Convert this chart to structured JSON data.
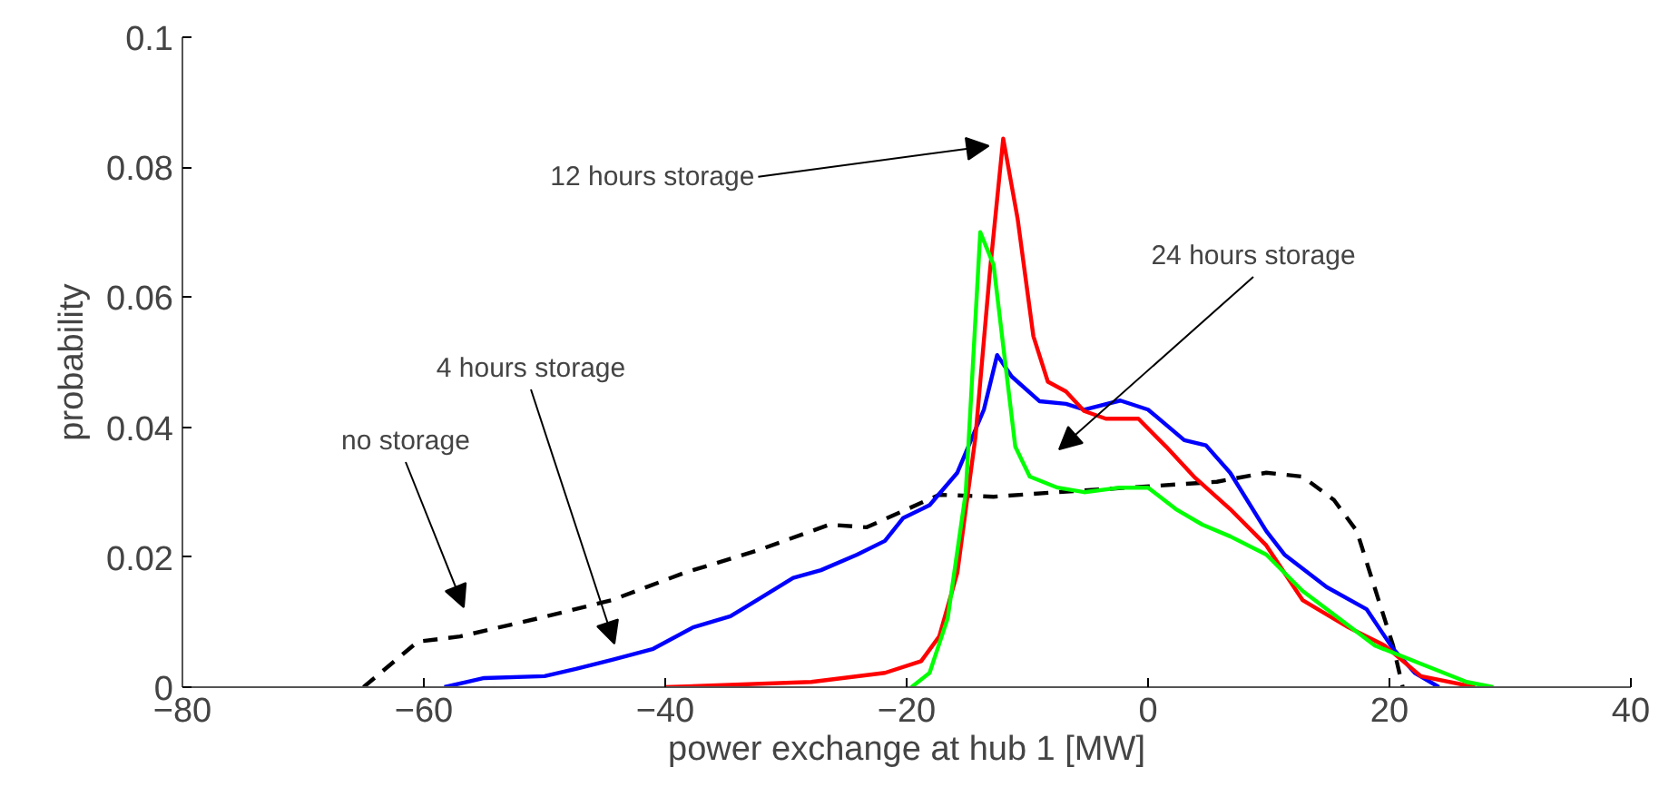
{
  "chart_data": {
    "type": "line",
    "xlabel": "power exchange at hub 1 [MW]",
    "ylabel": "probability",
    "xlim": [
      -80,
      40
    ],
    "xticks": [
      {
        "value": -80,
        "label": "−80"
      },
      {
        "value": -60,
        "label": "−60"
      },
      {
        "value": -40,
        "label": "−40"
      },
      {
        "value": -20,
        "label": "−20"
      },
      0,
      20,
      40
    ],
    "ylim": [
      0,
      0.1
    ],
    "yticks": [
      0,
      0.02,
      0.04,
      0.06,
      0.08,
      0.1
    ],
    "grid": false,
    "series": [
      {
        "color": "#000000",
        "line_style": "dashed",
        "x": [
          -65,
          -60.5,
          -57,
          -50.5,
          -44.4,
          -38.4,
          -32.4,
          -26.4,
          -23.3,
          -17.3,
          -12.8,
          -7.5,
          0.8,
          5.7,
          9.8,
          12.8,
          15.4,
          17.3,
          19.1,
          20.3,
          21.1
        ],
        "values": [
          0,
          0.007,
          0.0078,
          0.0106,
          0.0134,
          0.0176,
          0.021,
          0.025,
          0.0246,
          0.0296,
          0.0293,
          0.03,
          0.031,
          0.0316,
          0.033,
          0.0324,
          0.0288,
          0.024,
          0.0134,
          0.0064,
          0
        ]
      },
      {
        "color": "#0000ff",
        "line_style": "solid",
        "x": [
          -58.3,
          -55,
          -50,
          -47.4,
          -44.4,
          -41,
          -37.7,
          -34.6,
          -32.4,
          -29.4,
          -27.1,
          -24.1,
          -21.8,
          -20.3,
          -18.1,
          -15.8,
          -13.6,
          -12.5,
          -11.3,
          -9,
          -6.8,
          -5.3,
          -2.3,
          0,
          3,
          4.8,
          6.8,
          9.8,
          11.3,
          14.8,
          18.1,
          20.3,
          22.1,
          24.1
        ],
        "values": [
          0,
          0.0014,
          0.0017,
          0.0028,
          0.0042,
          0.0059,
          0.0092,
          0.0109,
          0.0134,
          0.0168,
          0.018,
          0.0204,
          0.0225,
          0.026,
          0.028,
          0.033,
          0.0427,
          0.0511,
          0.0478,
          0.044,
          0.0436,
          0.0427,
          0.0441,
          0.0427,
          0.038,
          0.0372,
          0.033,
          0.024,
          0.0204,
          0.0154,
          0.012,
          0.0059,
          0.0022,
          0
        ]
      },
      {
        "color": "#ff0000",
        "line_style": "solid",
        "x": [
          -40,
          -27.9,
          -21.8,
          -18.8,
          -17.3,
          -15.8,
          -14.3,
          -13.1,
          -12,
          -10.8,
          -9.5,
          -8.3,
          -6.8,
          -5.3,
          -3.5,
          -0.8,
          1.5,
          3.8,
          6.8,
          9.8,
          12.8,
          16.6,
          19.6,
          22.6,
          27.1
        ],
        "values": [
          0,
          0.0008,
          0.0022,
          0.004,
          0.0078,
          0.0176,
          0.0385,
          0.064,
          0.0844,
          0.072,
          0.054,
          0.047,
          0.0455,
          0.0425,
          0.0413,
          0.0413,
          0.037,
          0.0324,
          0.0274,
          0.0218,
          0.0134,
          0.0092,
          0.0064,
          0.0017,
          0
        ]
      },
      {
        "color": "#00ff00",
        "line_style": "solid",
        "x": [
          -19.6,
          -18.1,
          -16.6,
          -15.1,
          -13.9,
          -12.8,
          -12,
          -11,
          -9.8,
          -7.5,
          -5.3,
          -2.3,
          0,
          2.3,
          4.5,
          6.8,
          9.8,
          12.8,
          15.8,
          18.8,
          22.6,
          26.4,
          28.6
        ],
        "values": [
          0,
          0.0022,
          0.0106,
          0.03,
          0.07,
          0.065,
          0.0525,
          0.037,
          0.0324,
          0.0307,
          0.03,
          0.0307,
          0.0307,
          0.0274,
          0.025,
          0.0232,
          0.0204,
          0.0148,
          0.0106,
          0.0064,
          0.0036,
          0.0008,
          0
        ]
      }
    ],
    "annotations": [
      {
        "text": "12 hours storage",
        "x": -12,
        "y": 0.0844
      },
      "24 hours storage",
      "4 hours storage",
      "no storage"
    ]
  }
}
